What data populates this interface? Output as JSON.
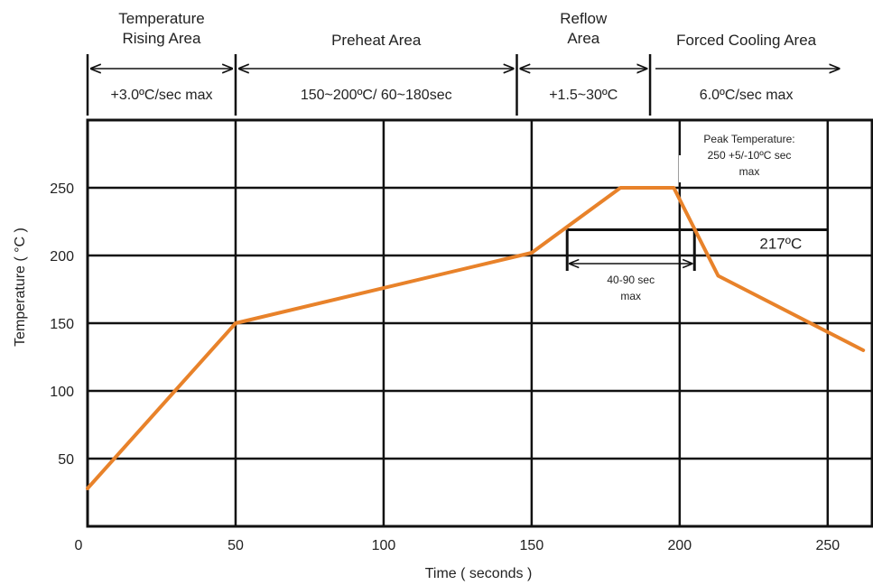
{
  "chart_data": {
    "type": "line",
    "xlabel": "Time ( seconds )",
    "ylabel": "Temperature ( °C )",
    "xlim": [
      0,
      265
    ],
    "ylim": [
      0,
      300
    ],
    "x_ticks": [
      0,
      50,
      100,
      150,
      200,
      250
    ],
    "x_tick_labels": [
      "0",
      "50",
      "100",
      "150",
      "200",
      "250"
    ],
    "y_ticks": [
      50,
      100,
      150,
      200,
      250
    ],
    "y_tick_labels": [
      "50",
      "100",
      "150",
      "200",
      "250"
    ],
    "grid": true,
    "series": [
      {
        "color": "#E8822A",
        "x": [
          0,
          50,
          150,
          180,
          198,
          213,
          262
        ],
        "y": [
          28,
          150,
          202,
          250,
          250,
          185,
          130
        ]
      }
    ],
    "zones": [
      {
        "title_lines": [
          "Temperature",
          "Rising Area"
        ],
        "rate": "+3.0ºC/sec max",
        "x_start": 0,
        "x_end": 50
      },
      {
        "title_lines": [
          "Preheat Area"
        ],
        "rate": "150~200ºC/ 60~180sec",
        "x_start": 50,
        "x_end": 145
      },
      {
        "title_lines": [
          "Reflow",
          "Area"
        ],
        "rate": "+1.5~30ºC",
        "x_start": 145,
        "x_end": 190
      },
      {
        "title_lines": [
          "Forced Cooling Area"
        ],
        "rate": "6.0ºC/sec max",
        "x_start": 190,
        "x_end": 255
      }
    ],
    "annotations": {
      "peak": {
        "lines": [
          "Peak Temperature:",
          "250 +5/-10ºC sec",
          "max"
        ]
      },
      "limit_line": {
        "label": "217ºC",
        "y": 219,
        "x_start": 162,
        "x_end": 250
      },
      "duration": {
        "lines": [
          "40-90 sec",
          "max"
        ],
        "x_start": 162,
        "x_end": 205
      }
    }
  }
}
